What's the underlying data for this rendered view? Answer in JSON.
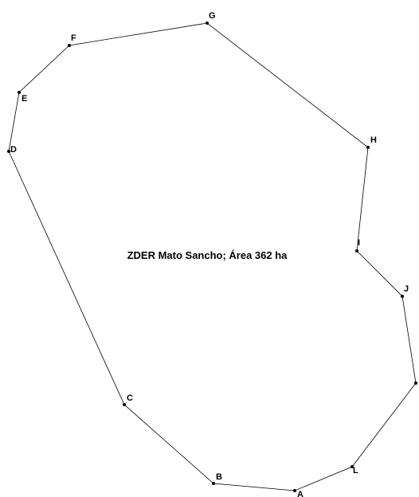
{
  "title": "ZDER Mato Sancho; Área 362 ha",
  "vertices": [
    {
      "label": "A"
    },
    {
      "label": "B"
    },
    {
      "label": "C"
    },
    {
      "label": "D"
    },
    {
      "label": "E"
    },
    {
      "label": "F"
    },
    {
      "label": "G"
    },
    {
      "label": "H"
    },
    {
      "label": "I"
    },
    {
      "label": "J"
    },
    {
      "label": "L"
    }
  ]
}
